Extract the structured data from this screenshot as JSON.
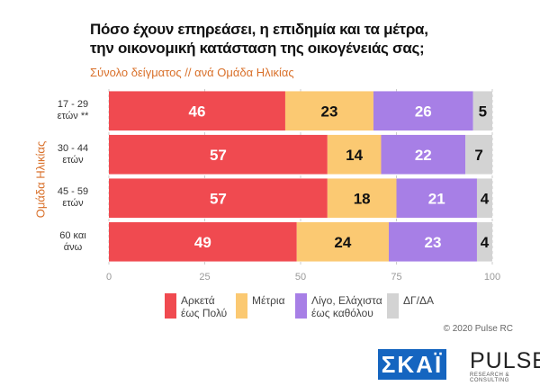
{
  "chart_data": {
    "type": "bar",
    "orientation": "horizontal",
    "stacked": true,
    "title": "Πόσο έχουν επηρεάσει, η επιδημία και τα μέτρα,\nτην οικονομική κατάσταση της οικογένειάς σας;",
    "subtitle": "Σύνολο δείγματος // ανά Ομάδα Ηλικίας",
    "y_label": "Ομάδα Ηλικίας",
    "categories": [
      "17 - 29\nετών **",
      "30 - 44\nετών",
      "45 - 59\nετών",
      "60 και\nάνω"
    ],
    "series": [
      {
        "name": "Αρκετά\nέως Πολύ",
        "color": "#f04a50",
        "label_color": "#ffffff",
        "values": [
          46,
          57,
          57,
          49
        ]
      },
      {
        "name": "Μέτρια",
        "color": "#fbc972",
        "label_color": "#111111",
        "values": [
          23,
          14,
          18,
          24
        ]
      },
      {
        "name": "Λίγο, Ελάχιστα\nέως καθόλου",
        "color": "#a77fe6",
        "label_color": "#ffffff",
        "values": [
          26,
          22,
          21,
          23
        ]
      },
      {
        "name": "ΔΓ/ΔΑ",
        "color": "#d3d3d3",
        "label_color": "#111111",
        "values": [
          5,
          7,
          4,
          4
        ]
      }
    ],
    "xlim": [
      0,
      100
    ],
    "xticks": [
      0,
      25,
      50,
      75,
      100
    ],
    "grid": true,
    "source": "© 2020 Pulse RC",
    "logos": [
      "ΣΚΑΪ",
      "PULSE",
      "RESEARCH & CONSULTING"
    ]
  }
}
